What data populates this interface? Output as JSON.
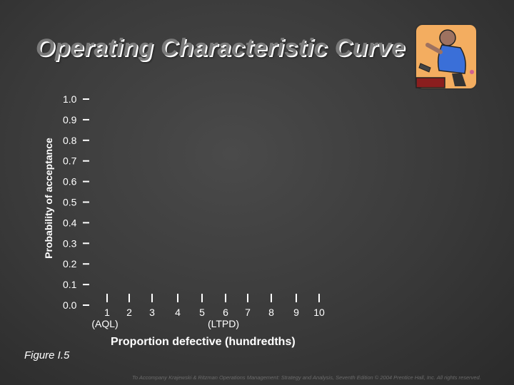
{
  "slide": {
    "title": "Operating Characteristic Curve",
    "figure_label": "Figure I.5",
    "footer": "To Accompany Krajewski & Ritzman Operations Management: Strategy and Analysis, Seventh Edition © 2004 Prentice Hall, Inc. All rights reserved.",
    "logo_icon": "worker-with-wrench-icon"
  },
  "chart_data": {
    "type": "line",
    "title": "",
    "xlabel": "Proportion defective (hundredths)",
    "ylabel": "Probability of acceptance",
    "xlim": [
      0,
      10
    ],
    "ylim": [
      0,
      1
    ],
    "x_ticks": [
      "1",
      "2",
      "3",
      "4",
      "5",
      "6",
      "7",
      "8",
      "9",
      "10"
    ],
    "y_ticks": [
      "0.0",
      "0.1",
      "0.2",
      "0.3",
      "0.4",
      "0.5",
      "0.6",
      "0.7",
      "0.8",
      "0.9",
      "1.0"
    ],
    "x_annotations": [
      {
        "at": "1",
        "text": "(AQL)"
      },
      {
        "at": "6",
        "text": "(LTPD)"
      }
    ],
    "series": [],
    "grid": false,
    "colors": {
      "axis_text": "#ffffff",
      "tick": "#ffffff"
    }
  }
}
